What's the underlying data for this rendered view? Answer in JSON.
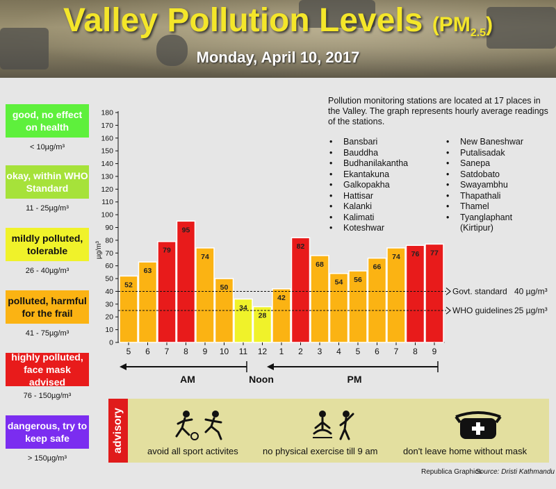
{
  "header": {
    "title_main": "Valley Pollution Levels",
    "title_pm": "(PM",
    "title_sub": "2.5",
    "title_close": ")",
    "date": "Monday, April 10, 2017"
  },
  "legend": [
    {
      "label": "good, no effect on health",
      "range": "< 10µg/m³",
      "color": "#5ef03c",
      "text_color": "#ffffff"
    },
    {
      "label": "okay, within WHO Standard",
      "range": "11 - 25µg/m³",
      "color": "#a6e23a",
      "text_color": "#ffffff"
    },
    {
      "label": "mildly polluted, tolerable",
      "range": "26 - 40µg/m³",
      "color": "#f0f22a",
      "text_color": "#111111"
    },
    {
      "label": "polluted, harmful for the frail",
      "range": "41 - 75µg/m³",
      "color": "#fbb313",
      "text_color": "#111111"
    },
    {
      "label": "highly polluted, face mask advised",
      "range": "76 - 150µg/m³",
      "color": "#e81b1b",
      "text_color": "#ffffff"
    },
    {
      "label": "dangerous, try to keep safe",
      "range": "> 150µg/m³",
      "color": "#7b2df0",
      "text_color": "#ffffff"
    }
  ],
  "info": {
    "description": "Pollution monitoring stations are located at 17 places in the Valley. The graph represents hourly average readings of the stations.",
    "stations_left": [
      "Bansbari",
      "Bauddha",
      "Budhanilakantha",
      "Ekantakuna",
      "Galkopakha",
      "Hattisar",
      "Kalanki",
      "Kalimati",
      "Koteshwar"
    ],
    "stations_right": [
      "New Baneshwar",
      "Putalisadak",
      "Sanepa",
      "Satdobato",
      "Swayambhu",
      "Thapathali",
      "Thamel",
      "Tyanglaphant",
      "(Kirtipur)"
    ]
  },
  "chart_data": {
    "type": "bar",
    "title": "Valley Pollution Levels (PM2.5)",
    "categories": [
      "5",
      "6",
      "7",
      "8",
      "9",
      "10",
      "11",
      "12",
      "1",
      "2",
      "3",
      "4",
      "5",
      "6",
      "7",
      "8",
      "9"
    ],
    "values": [
      52,
      63,
      79,
      95,
      74,
      50,
      34,
      28,
      42,
      82,
      68,
      54,
      56,
      66,
      74,
      76,
      77
    ],
    "ylabel": "µg/m³",
    "ylim": [
      0,
      180
    ],
    "yticks": [
      0,
      10,
      20,
      30,
      40,
      50,
      60,
      70,
      80,
      90,
      100,
      110,
      120,
      130,
      140,
      150,
      160,
      170,
      180
    ],
    "periods": {
      "am": "AM",
      "noon": "Noon",
      "pm": "PM"
    },
    "reference_lines": [
      {
        "label": "Govt. standard",
        "value": 40,
        "value_label": "40 µg/m³"
      },
      {
        "label": "WHO guidelines",
        "value": 25,
        "value_label": "25 µg/m³"
      }
    ],
    "colors": {
      "mild": "#f0f22a",
      "polluted": "#fbb313",
      "high": "#e81b1b"
    }
  },
  "advisory": {
    "tab": "advisory",
    "items": [
      "avoid all sport activites",
      "no physical exercise till 9 am",
      "don't leave home without mask"
    ]
  },
  "credits": {
    "graphics": "Republica Graphics",
    "source": "Source: Dristi Kathmandu"
  }
}
